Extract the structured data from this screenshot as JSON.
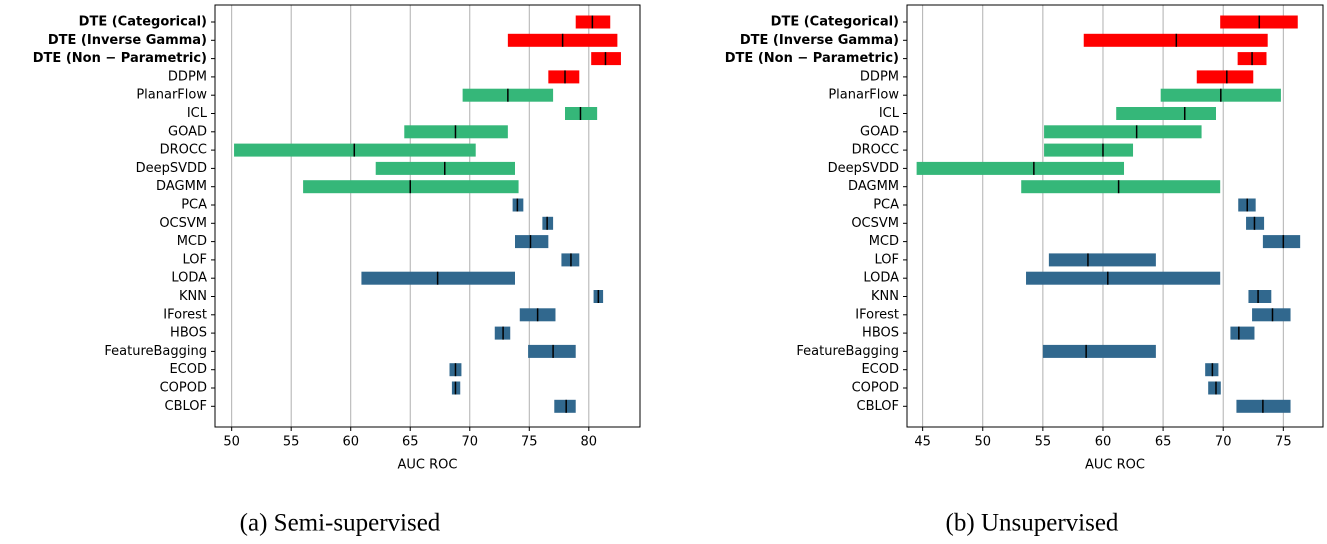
{
  "chart_data": [
    {
      "type": "range-bar",
      "caption": "(a) Semi-supervised",
      "xlabel": "AUC ROC",
      "categories": [
        "DTE (Categorical)",
        "DTE (Inverse Gamma)",
        "DTE (Non − Parametric)",
        "DDPM",
        "PlanarFlow",
        "ICL",
        "GOAD",
        "DROCC",
        "DeepSVDD",
        "DAGMM",
        "PCA",
        "OCSVM",
        "MCD",
        "LOF",
        "LODA",
        "KNN",
        "IForest",
        "HBOS",
        "FeatureBagging",
        "ECOD",
        "COPOD",
        "CBLOF"
      ],
      "low": [
        78.9,
        73.2,
        80.2,
        76.6,
        69.4,
        78.0,
        64.5,
        50.2,
        62.1,
        56.0,
        73.6,
        76.1,
        73.8,
        77.7,
        60.9,
        80.4,
        74.2,
        72.1,
        74.9,
        68.3,
        68.5,
        77.1
      ],
      "high": [
        81.8,
        82.4,
        82.7,
        79.2,
        77.0,
        80.7,
        73.2,
        70.5,
        73.8,
        74.1,
        74.5,
        77.0,
        76.6,
        79.2,
        73.8,
        81.2,
        77.2,
        73.4,
        78.9,
        69.3,
        69.2,
        78.9
      ],
      "median": [
        80.3,
        77.8,
        81.4,
        78.0,
        73.2,
        79.3,
        68.8,
        60.3,
        67.9,
        65.0,
        74.0,
        76.5,
        75.1,
        78.5,
        67.3,
        80.8,
        75.7,
        72.8,
        77.0,
        68.8,
        68.8,
        78.1
      ],
      "colors": [
        "#ff0000",
        "#ff0000",
        "#ff0000",
        "#ff0000",
        "#35b779",
        "#35b779",
        "#35b779",
        "#35b779",
        "#35b779",
        "#35b779",
        "#31688e",
        "#31688e",
        "#31688e",
        "#31688e",
        "#31688e",
        "#31688e",
        "#31688e",
        "#31688e",
        "#31688e",
        "#31688e",
        "#31688e",
        "#31688e"
      ],
      "xlim": [
        48.6,
        84.3
      ],
      "xticks": [
        50,
        55,
        60,
        65,
        70,
        75,
        80
      ],
      "grid": true
    },
    {
      "type": "range-bar",
      "caption": "(b) Unsupervised",
      "xlabel": "AUC ROC",
      "categories": [
        "DTE (Categorical)",
        "DTE (Inverse Gamma)",
        "DTE (Non − Parametric)",
        "DDPM",
        "PlanarFlow",
        "ICL",
        "GOAD",
        "DROCC",
        "DeepSVDD",
        "DAGMM",
        "PCA",
        "OCSVM",
        "MCD",
        "LOF",
        "LODA",
        "KNN",
        "IForest",
        "HBOS",
        "FeatureBagging",
        "ECOD",
        "COPOD",
        "CBLOF"
      ],
      "low": [
        69.75,
        58.4,
        71.2,
        67.8,
        64.8,
        61.1,
        55.1,
        55.1,
        44.5,
        53.2,
        71.25,
        71.9,
        73.3,
        55.5,
        53.6,
        72.1,
        72.4,
        70.6,
        55.0,
        68.5,
        68.75,
        71.1
      ],
      "high": [
        76.2,
        73.7,
        73.6,
        72.5,
        74.8,
        69.4,
        68.2,
        62.5,
        61.75,
        69.75,
        72.7,
        73.4,
        76.4,
        64.4,
        69.75,
        74.0,
        75.6,
        72.6,
        64.4,
        69.6,
        69.8,
        75.6
      ],
      "median": [
        73.0,
        66.1,
        72.4,
        70.3,
        69.8,
        66.8,
        62.8,
        60.0,
        54.25,
        61.3,
        72.0,
        72.6,
        75.0,
        58.75,
        60.4,
        72.9,
        74.1,
        71.3,
        58.6,
        69.1,
        69.4,
        73.3
      ],
      "colors": [
        "#ff0000",
        "#ff0000",
        "#ff0000",
        "#ff0000",
        "#35b779",
        "#35b779",
        "#35b779",
        "#35b779",
        "#35b779",
        "#35b779",
        "#31688e",
        "#31688e",
        "#31688e",
        "#31688e",
        "#31688e",
        "#31688e",
        "#31688e",
        "#31688e",
        "#31688e",
        "#31688e",
        "#31688e",
        "#31688e"
      ],
      "xlim": [
        43.7,
        78.3
      ],
      "xticks": [
        45,
        50,
        55,
        60,
        65,
        70,
        75
      ],
      "grid": true
    }
  ]
}
